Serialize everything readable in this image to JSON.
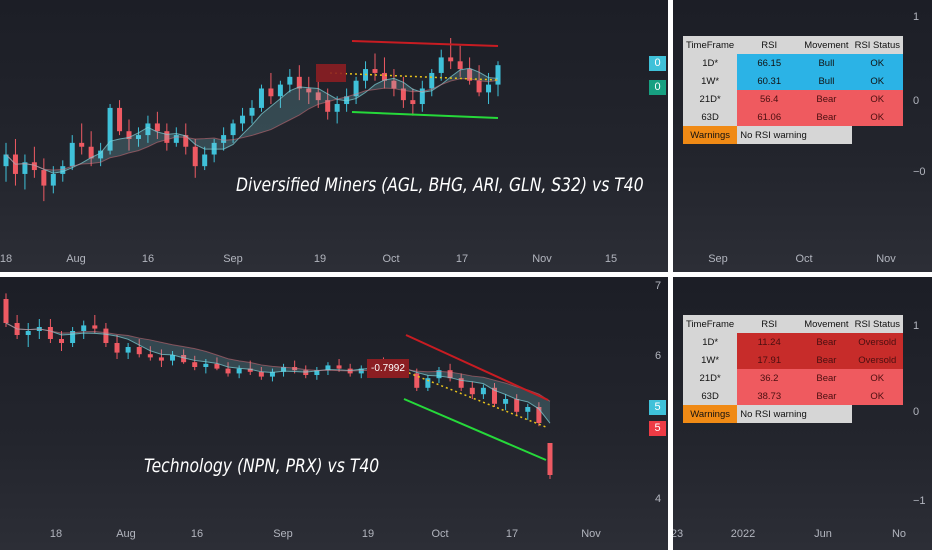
{
  "colors": {
    "up": "#3fc1d9",
    "down": "#ee5a63",
    "resistance": "#c81c22",
    "support": "#26d93a",
    "dotted": "#e8c21d",
    "ribbon": "#7fd3da",
    "table_bull": "#2bb3e6",
    "table_bear": "#ef5a5f",
    "table_oversold": "#c72c2a"
  },
  "top": {
    "title": "Diversified Miners (AGL, BHG, ARI, GLN, S32) vs T40",
    "x_ticks": [
      "18",
      "Aug",
      "16",
      "Sep",
      "19",
      "Oct",
      "17",
      "Nov",
      "15"
    ],
    "badges": [
      {
        "value": "0",
        "color": "#3fc1d9"
      },
      {
        "value": "0",
        "color": "#17a081"
      }
    ],
    "callout": ""
  },
  "bottom": {
    "title": "Technology (NPN, PRX) vs T40",
    "x_ticks": [
      "18",
      "Aug",
      "16",
      "Sep",
      "19",
      "Oct",
      "17",
      "Nov"
    ],
    "y_ticks": [
      "7",
      "6",
      "5",
      "4"
    ],
    "badges": [
      {
        "value": "5",
        "color": "#3fc1d9"
      },
      {
        "value": "5",
        "color": "#ee3b45"
      }
    ],
    "callout": "-0.7992"
  },
  "right_top": {
    "y_ticks": [
      "1",
      "0",
      "−0"
    ],
    "x_ticks": [
      "Sep",
      "Oct",
      "Nov"
    ],
    "table": {
      "headers": [
        "TimeFrame",
        "RSI",
        "Movement",
        "RSI Status"
      ],
      "rows": [
        {
          "tf": "1D*",
          "rsi": "66.15",
          "movement": "Bull",
          "status": "OK",
          "color": "#2bb3e6"
        },
        {
          "tf": "1W*",
          "rsi": "60.31",
          "movement": "Bull",
          "status": "OK",
          "color": "#2bb3e6"
        },
        {
          "tf": "21D*",
          "rsi": "56.4",
          "movement": "Bear",
          "status": "OK",
          "color": "#ef5a5f"
        },
        {
          "tf": "63D",
          "rsi": "61.06",
          "movement": "Bear",
          "status": "OK",
          "color": "#ef5a5f"
        }
      ],
      "warning_label": "Warnings",
      "warning_value": "No RSI warning"
    }
  },
  "right_bottom": {
    "y_ticks": [
      "1",
      "0",
      "−1"
    ],
    "x_ticks": [
      "23",
      "2022",
      "Jun",
      "No"
    ],
    "table": {
      "headers": [
        "TimeFrame",
        "RSI",
        "Movement",
        "RSI Status"
      ],
      "rows": [
        {
          "tf": "1D*",
          "rsi": "11.24",
          "movement": "Bear",
          "status": "Oversold",
          "color": "#c72c2a"
        },
        {
          "tf": "1W*",
          "rsi": "17.91",
          "movement": "Bear",
          "status": "Oversold",
          "color": "#c72c2a"
        },
        {
          "tf": "21D*",
          "rsi": "36.2",
          "movement": "Bear",
          "status": "OK",
          "color": "#ef5a5f"
        },
        {
          "tf": "63D",
          "rsi": "38.73",
          "movement": "Bear",
          "status": "OK",
          "color": "#ef5a5f"
        }
      ],
      "warning_label": "Warnings",
      "warning_value": "No RSI warning"
    }
  },
  "chart_data": [
    {
      "type": "candlestick",
      "title": "Diversified Miners (AGL, BHG, ARI, GLN, S32) vs T40",
      "x_ticks": [
        "18",
        "Aug",
        "16",
        "Sep",
        "19",
        "Oct",
        "17",
        "Nov",
        "15"
      ],
      "series": [
        {
          "name": "ratio",
          "ohlc": [
            [
              0.3,
              0.42,
              0.22,
              0.36
            ],
            [
              0.36,
              0.44,
              0.2,
              0.26
            ],
            [
              0.26,
              0.36,
              0.18,
              0.32
            ],
            [
              0.32,
              0.4,
              0.24,
              0.28
            ],
            [
              0.28,
              0.34,
              0.12,
              0.2
            ],
            [
              0.2,
              0.3,
              0.16,
              0.26
            ],
            [
              0.26,
              0.33,
              0.22,
              0.3
            ],
            [
              0.3,
              0.46,
              0.28,
              0.42
            ],
            [
              0.42,
              0.52,
              0.36,
              0.4
            ],
            [
              0.4,
              0.48,
              0.3,
              0.34
            ],
            [
              0.34,
              0.42,
              0.3,
              0.38
            ],
            [
              0.38,
              0.62,
              0.36,
              0.6
            ],
            [
              0.6,
              0.64,
              0.46,
              0.48
            ],
            [
              0.48,
              0.54,
              0.38,
              0.44
            ],
            [
              0.44,
              0.5,
              0.4,
              0.46
            ],
            [
              0.46,
              0.56,
              0.42,
              0.52
            ],
            [
              0.52,
              0.58,
              0.44,
              0.48
            ],
            [
              0.48,
              0.52,
              0.38,
              0.42
            ],
            [
              0.42,
              0.5,
              0.4,
              0.46
            ],
            [
              0.46,
              0.52,
              0.36,
              0.4
            ],
            [
              0.4,
              0.44,
              0.24,
              0.3
            ],
            [
              0.3,
              0.4,
              0.28,
              0.36
            ],
            [
              0.36,
              0.44,
              0.32,
              0.42
            ],
            [
              0.42,
              0.5,
              0.38,
              0.46
            ],
            [
              0.46,
              0.54,
              0.42,
              0.52
            ],
            [
              0.52,
              0.6,
              0.48,
              0.56
            ],
            [
              0.56,
              0.64,
              0.52,
              0.6
            ],
            [
              0.6,
              0.72,
              0.58,
              0.7
            ],
            [
              0.7,
              0.78,
              0.62,
              0.66
            ],
            [
              0.66,
              0.74,
              0.6,
              0.72
            ],
            [
              0.72,
              0.8,
              0.68,
              0.76
            ],
            [
              0.76,
              0.82,
              0.64,
              0.7
            ],
            [
              0.7,
              0.76,
              0.62,
              0.68
            ],
            [
              0.68,
              0.74,
              0.6,
              0.64
            ],
            [
              0.64,
              0.7,
              0.54,
              0.58
            ],
            [
              0.58,
              0.66,
              0.52,
              0.62
            ],
            [
              0.62,
              0.7,
              0.58,
              0.66
            ],
            [
              0.66,
              0.76,
              0.62,
              0.74
            ],
            [
              0.74,
              0.84,
              0.7,
              0.8
            ],
            [
              0.8,
              0.88,
              0.74,
              0.78
            ],
            [
              0.78,
              0.86,
              0.7,
              0.74
            ],
            [
              0.74,
              0.8,
              0.66,
              0.7
            ],
            [
              0.7,
              0.76,
              0.6,
              0.64
            ],
            [
              0.64,
              0.7,
              0.56,
              0.62
            ],
            [
              0.62,
              0.74,
              0.58,
              0.7
            ],
            [
              0.7,
              0.8,
              0.66,
              0.78
            ],
            [
              0.78,
              0.9,
              0.74,
              0.86
            ],
            [
              0.86,
              0.96,
              0.8,
              0.84
            ],
            [
              0.84,
              0.92,
              0.76,
              0.8
            ],
            [
              0.8,
              0.86,
              0.72,
              0.74
            ],
            [
              0.74,
              0.82,
              0.66,
              0.68
            ],
            [
              0.68,
              0.78,
              0.62,
              0.72
            ],
            [
              0.72,
              0.84,
              0.66,
              0.82
            ]
          ]
        }
      ]
    },
    {
      "type": "candlestick",
      "title": "Technology (NPN, PRX) vs T40",
      "x_ticks": [
        "18",
        "Aug",
        "16",
        "Sep",
        "19",
        "Oct",
        "17",
        "Nov"
      ],
      "y_ticks": [
        7,
        6,
        5,
        4
      ],
      "ylim": [
        3.8,
        7.0
      ],
      "series": [
        {
          "name": "ratio",
          "ohlc": [
            [
              6.55,
              6.62,
              6.2,
              6.25
            ],
            [
              6.25,
              6.35,
              6.05,
              6.1
            ],
            [
              6.1,
              6.25,
              5.95,
              6.15
            ],
            [
              6.15,
              6.3,
              6.05,
              6.2
            ],
            [
              6.2,
              6.3,
              6.0,
              6.05
            ],
            [
              6.05,
              6.15,
              5.9,
              6.0
            ],
            [
              6.0,
              6.2,
              5.95,
              6.15
            ],
            [
              6.15,
              6.28,
              6.05,
              6.22
            ],
            [
              6.22,
              6.35,
              6.12,
              6.18
            ],
            [
              6.18,
              6.25,
              5.95,
              6.0
            ],
            [
              6.0,
              6.1,
              5.8,
              5.88
            ],
            [
              5.88,
              6.0,
              5.8,
              5.95
            ],
            [
              5.95,
              6.05,
              5.82,
              5.86
            ],
            [
              5.86,
              5.96,
              5.78,
              5.82
            ],
            [
              5.82,
              5.92,
              5.7,
              5.78
            ],
            [
              5.78,
              5.9,
              5.72,
              5.85
            ],
            [
              5.85,
              5.92,
              5.74,
              5.76
            ],
            [
              5.76,
              5.84,
              5.66,
              5.7
            ],
            [
              5.7,
              5.8,
              5.62,
              5.74
            ],
            [
              5.74,
              5.82,
              5.66,
              5.68
            ],
            [
              5.68,
              5.76,
              5.58,
              5.62
            ],
            [
              5.62,
              5.72,
              5.56,
              5.68
            ],
            [
              5.68,
              5.78,
              5.6,
              5.64
            ],
            [
              5.64,
              5.7,
              5.54,
              5.58
            ],
            [
              5.58,
              5.68,
              5.52,
              5.64
            ],
            [
              5.64,
              5.74,
              5.58,
              5.7
            ],
            [
              5.7,
              5.78,
              5.62,
              5.66
            ],
            [
              5.66,
              5.72,
              5.56,
              5.6
            ],
            [
              5.6,
              5.7,
              5.54,
              5.66
            ],
            [
              5.66,
              5.76,
              5.6,
              5.72
            ],
            [
              5.72,
              5.8,
              5.64,
              5.68
            ],
            [
              5.68,
              5.74,
              5.58,
              5.62
            ],
            [
              5.62,
              5.72,
              5.56,
              5.68
            ],
            [
              5.68,
              5.78,
              5.6,
              5.74
            ],
            [
              5.74,
              5.82,
              5.66,
              5.7
            ],
            [
              5.7,
              5.78,
              5.62,
              5.66
            ],
            [
              5.66,
              5.74,
              5.58,
              5.62
            ],
            [
              5.62,
              5.68,
              5.4,
              5.44
            ],
            [
              5.44,
              5.6,
              5.4,
              5.56
            ],
            [
              5.56,
              5.7,
              5.5,
              5.66
            ],
            [
              5.66,
              5.74,
              5.52,
              5.56
            ],
            [
              5.56,
              5.62,
              5.4,
              5.44
            ],
            [
              5.44,
              5.52,
              5.3,
              5.36
            ],
            [
              5.36,
              5.48,
              5.3,
              5.44
            ],
            [
              5.44,
              5.5,
              5.2,
              5.24
            ],
            [
              5.24,
              5.36,
              5.16,
              5.3
            ],
            [
              5.3,
              5.36,
              5.1,
              5.14
            ],
            [
              5.14,
              5.24,
              5.04,
              5.2
            ],
            [
              5.2,
              5.26,
              4.96,
              5.0
            ],
            [
              4.75,
              4.75,
              4.3,
              4.35
            ]
          ]
        }
      ]
    }
  ]
}
